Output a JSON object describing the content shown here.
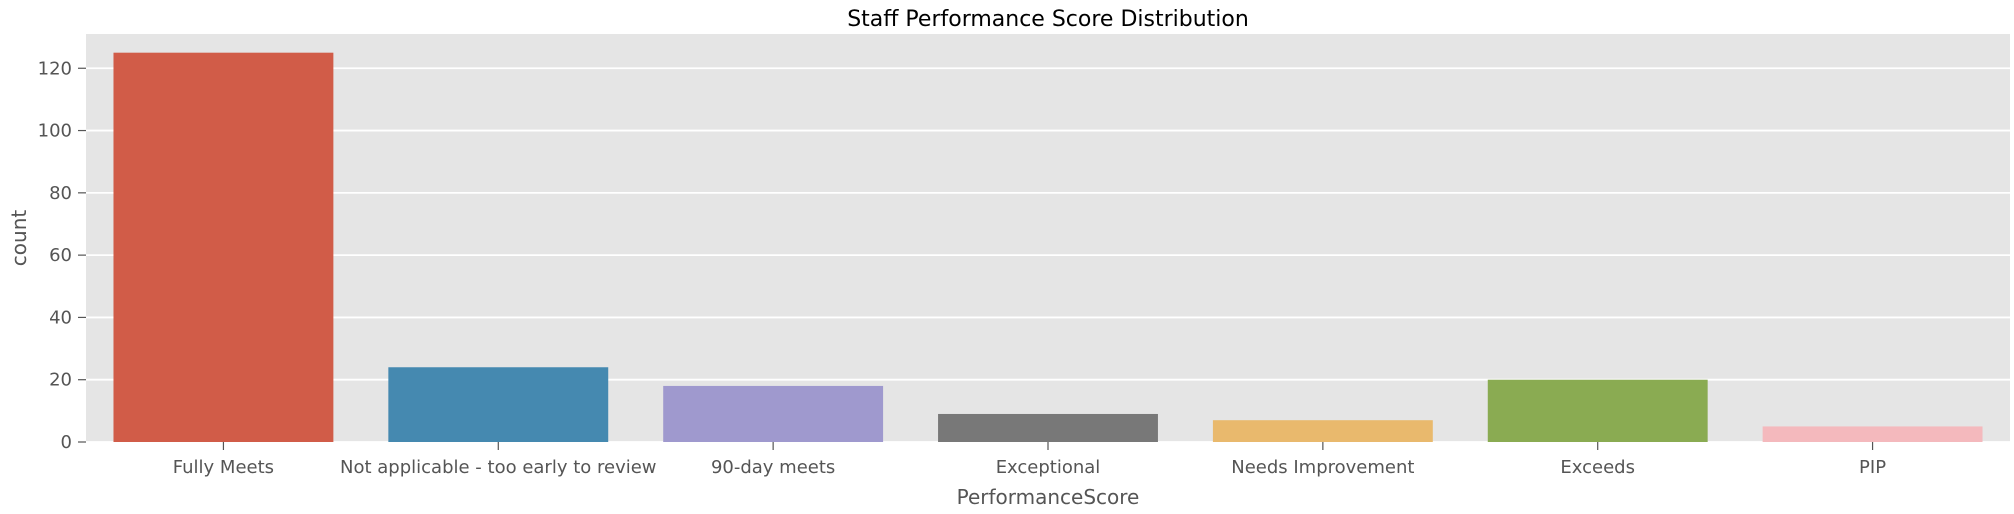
{
  "chart_data": {
    "type": "bar",
    "title": "Staff Performance Score Distribution",
    "xlabel": "PerformanceScore",
    "ylabel": "count",
    "categories": [
      "Fully Meets",
      "Not applicable - too early to review",
      "90-day meets",
      "Exceptional",
      "Needs Improvement",
      "Exceeds",
      "PIP"
    ],
    "values": [
      125,
      24,
      18,
      9,
      7,
      20,
      5
    ],
    "colors": [
      "#d15c48",
      "#4589b0",
      "#9f99ce",
      "#787878",
      "#e9b96d",
      "#8aab52",
      "#f4b9bd"
    ],
    "ylim": [
      0,
      131
    ],
    "yticks": [
      0,
      20,
      40,
      60,
      80,
      100,
      120
    ],
    "grid": true,
    "background": "#e5e5e5",
    "gridColor": "#ffffff"
  }
}
